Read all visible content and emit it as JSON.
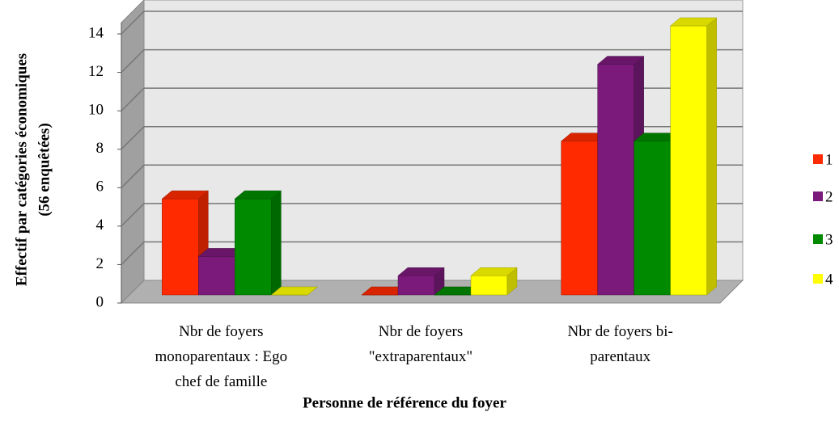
{
  "chart_data": {
    "type": "bar3d",
    "ylabel": [
      "Effectif par catégories économiques",
      "(56 enquêtées)"
    ],
    "xlabel": "Personne de référence du foyer",
    "categories": [
      "Nbr de foyers monoparentaux : Ego chef de famille",
      "Nbr de foyers \"extraparentaux\"",
      "Nbr de foyers bi-parentaux"
    ],
    "series": [
      {
        "name": "1",
        "color": "#ff2a00",
        "values": [
          5,
          0,
          8
        ]
      },
      {
        "name": "2",
        "color": "#7b1a7a",
        "values": [
          2,
          1,
          12
        ]
      },
      {
        "name": "3",
        "color": "#008a00",
        "values": [
          5,
          0,
          8
        ]
      },
      {
        "name": "4",
        "color": "#ffff00",
        "values": [
          0,
          1,
          14
        ]
      }
    ],
    "ylim": [
      0,
      14
    ],
    "yticks": [
      0,
      2,
      4,
      6,
      8,
      10,
      12,
      14
    ],
    "grid": true,
    "legend": "right"
  }
}
